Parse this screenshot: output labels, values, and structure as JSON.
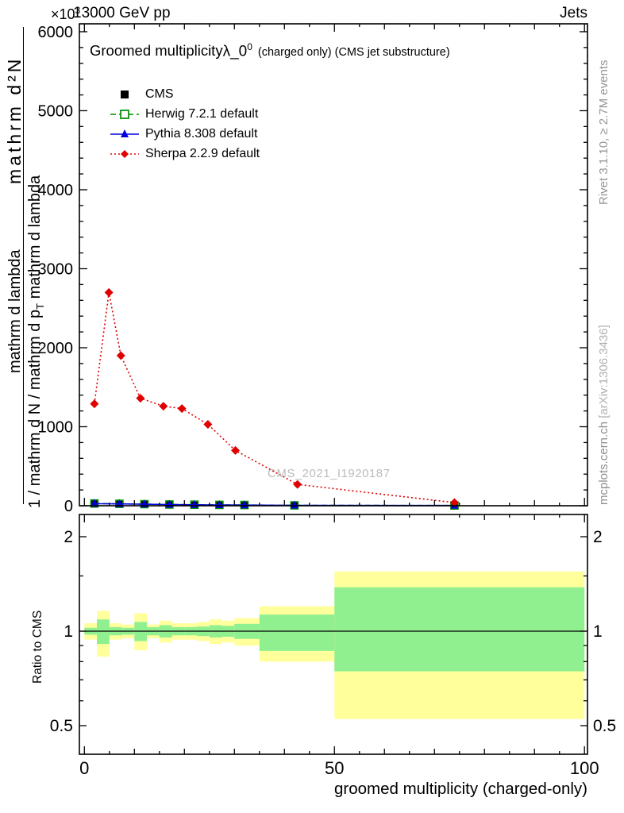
{
  "header": {
    "beam": "13000 GeV pp",
    "category": "Jets",
    "y_scale_base": "×10",
    "y_scale_exp": "3"
  },
  "side_notes": {
    "rivet": "Rivet 3.1.10, ≥ 2.7M events",
    "mcplots": "mcplots.cern.ch ",
    "arxiv": "[arXiv:1306.3436]",
    "watermark": "CMS_2021_I1920187"
  },
  "main_plot": {
    "title_main": "Groomed multiplicity",
    "title_symbol": "λ_0",
    "title_symbol_sup": "0",
    "title_suffix": "(charged only) (CMS jet substructure)",
    "ylabel_line1": "mathrm d²N",
    "ylabel_line2": "mathrm d lambda",
    "ylabel_line3_prefix": "1 / mathrm d N / mathrm d p",
    "ylabel_line3_sub": "T",
    "ylabel_line3_suffix": " mathrm d lambda",
    "legend": [
      {
        "label": "CMS",
        "key": "cms",
        "marker": "square",
        "color": "#000000",
        "line": "none"
      },
      {
        "label": "Herwig 7.2.1 default",
        "key": "herwig",
        "marker": "open-square",
        "color": "#009000",
        "line": "dashed"
      },
      {
        "label": "Pythia 8.308 default",
        "key": "pythia",
        "marker": "triangle",
        "color": "#0000dd",
        "line": "solid"
      },
      {
        "label": "Sherpa 2.2.9 default",
        "key": "sherpa",
        "marker": "diamond",
        "color": "#e00000",
        "line": "dotted"
      }
    ]
  },
  "ratio_plot": {
    "ylabel": "Ratio to CMS"
  },
  "xaxis": {
    "label": "groomed multiplicity (charged-only)"
  },
  "chart_data": [
    {
      "type": "line",
      "title": "Groomed multiplicity λ_0^0 (charged only) (CMS jet substructure)",
      "xlabel": "groomed multiplicity (charged-only)",
      "ylabel": "1/N d²N/dp_T dλ (axis values ×10³)",
      "xlim": [
        -1,
        100.6
      ],
      "ylim": [
        0,
        6100
      ],
      "x_ticks": [
        0,
        50,
        100
      ],
      "y_ticks": [
        0,
        1000,
        2000,
        3000,
        4000,
        5000,
        6000
      ],
      "grid": false,
      "legend_position": "upper-left",
      "series": [
        {
          "key": "cms",
          "name": "CMS",
          "color": "#000000",
          "line": "none",
          "marker": "square",
          "x": [
            2,
            7,
            12,
            17,
            22,
            27,
            32,
            42,
            74
          ],
          "y": [
            25,
            22,
            18,
            15,
            12,
            10,
            8,
            5,
            3
          ]
        },
        {
          "key": "herwig",
          "name": "Herwig 7.2.1 default",
          "color": "#009000",
          "line": "dashed",
          "marker": "open-square",
          "x": [
            2,
            7,
            12,
            17,
            22,
            27,
            32,
            42,
            74
          ],
          "y": [
            28,
            24,
            20,
            16,
            13,
            11,
            9,
            5,
            3
          ]
        },
        {
          "key": "pythia",
          "name": "Pythia 8.308 default",
          "color": "#0000dd",
          "line": "solid",
          "marker": "triangle",
          "x": [
            2,
            7,
            12,
            17,
            22,
            27,
            32,
            42,
            74
          ],
          "y": [
            26,
            23,
            19,
            15,
            12,
            10,
            8,
            5,
            3
          ]
        },
        {
          "key": "sherpa",
          "name": "Sherpa 2.2.9 default",
          "color": "#e00000",
          "line": "dotted",
          "marker": "diamond",
          "x": [
            2,
            4.9,
            7.3,
            11.2,
            15.8,
            19.5,
            24.7,
            30.2,
            42.6,
            74
          ],
          "y": [
            1290,
            2700,
            1900,
            1360,
            1260,
            1230,
            1030,
            700,
            270,
            40
          ]
        }
      ]
    },
    {
      "type": "ratio-bands",
      "ylabel": "Ratio to CMS",
      "yscale": "log",
      "ylim": [
        0.406,
        2.36
      ],
      "y_ticks": [
        0.5,
        1,
        2
      ],
      "y_minor_ticks": [
        0.6,
        0.7,
        0.8,
        0.9,
        1.5
      ],
      "reference_line": 1,
      "colors": {
        "yellow": "#ffff9b",
        "green": "#90f090"
      },
      "bands": [
        {
          "x0": 0,
          "x1": 2.5,
          "y_lo": 0.94,
          "y_hi": 1.06,
          "g_lo": 0.975,
          "g_hi": 1.025
        },
        {
          "x0": 2.5,
          "x1": 5,
          "y_lo": 0.83,
          "y_hi": 1.16,
          "g_lo": 0.91,
          "g_hi": 1.09
        },
        {
          "x0": 5,
          "x1": 7.5,
          "y_lo": 0.94,
          "y_hi": 1.06,
          "g_lo": 0.97,
          "g_hi": 1.03
        },
        {
          "x0": 7.5,
          "x1": 10,
          "y_lo": 0.95,
          "y_hi": 1.05,
          "g_lo": 0.975,
          "g_hi": 1.025
        },
        {
          "x0": 10,
          "x1": 12.5,
          "y_lo": 0.87,
          "y_hi": 1.14,
          "g_lo": 0.93,
          "g_hi": 1.07
        },
        {
          "x0": 12.5,
          "x1": 15,
          "y_lo": 0.95,
          "y_hi": 1.05,
          "g_lo": 0.97,
          "g_hi": 1.03
        },
        {
          "x0": 15,
          "x1": 17.5,
          "y_lo": 0.92,
          "y_hi": 1.08,
          "g_lo": 0.955,
          "g_hi": 1.045
        },
        {
          "x0": 17.5,
          "x1": 20,
          "y_lo": 0.94,
          "y_hi": 1.06,
          "g_lo": 0.97,
          "g_hi": 1.03
        },
        {
          "x0": 20,
          "x1": 22.5,
          "y_lo": 0.94,
          "y_hi": 1.06,
          "g_lo": 0.97,
          "g_hi": 1.03
        },
        {
          "x0": 22.5,
          "x1": 25,
          "y_lo": 0.93,
          "y_hi": 1.07,
          "g_lo": 0.965,
          "g_hi": 1.035
        },
        {
          "x0": 25,
          "x1": 27.5,
          "y_lo": 0.91,
          "y_hi": 1.09,
          "g_lo": 0.955,
          "g_hi": 1.045
        },
        {
          "x0": 27.5,
          "x1": 30,
          "y_lo": 0.92,
          "y_hi": 1.08,
          "g_lo": 0.96,
          "g_hi": 1.04
        },
        {
          "x0": 30,
          "x1": 35,
          "y_lo": 0.9,
          "y_hi": 1.1,
          "g_lo": 0.945,
          "g_hi": 1.055
        },
        {
          "x0": 35,
          "x1": 50,
          "y_lo": 0.8,
          "y_hi": 1.2,
          "g_lo": 0.865,
          "g_hi": 1.13
        },
        {
          "x0": 50,
          "x1": 100,
          "y_lo": 0.525,
          "y_hi": 1.55,
          "g_lo": 0.745,
          "g_hi": 1.38
        }
      ]
    }
  ]
}
